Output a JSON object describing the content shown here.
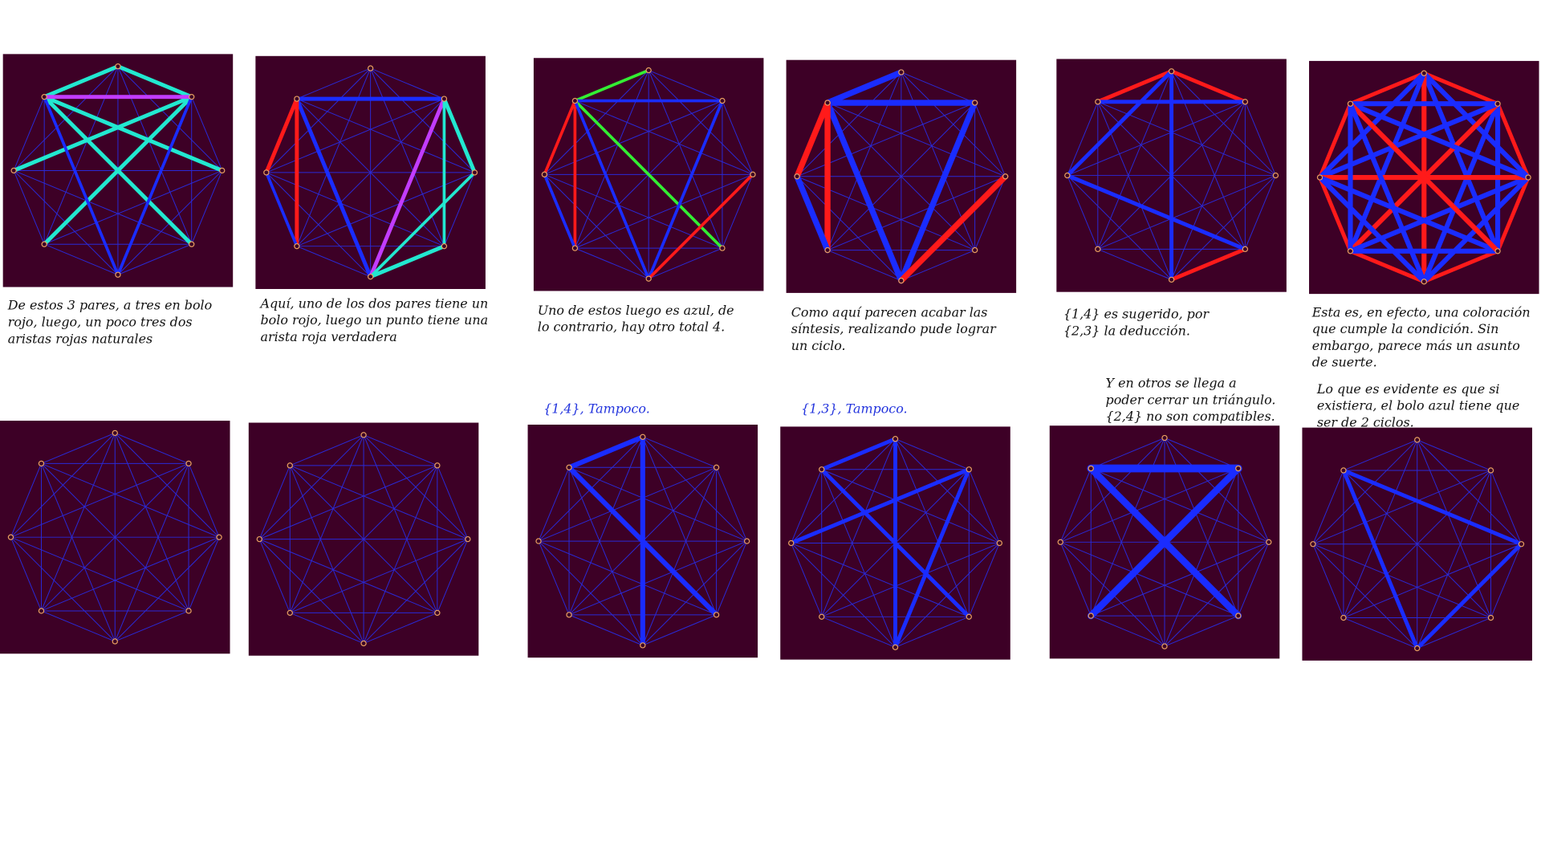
{
  "notes": [
    {
      "lines": [
        "De estos 3 pares, a tres en bolo",
        "rojo, luego, un poco tres dos",
        "aristas rojas naturales"
      ]
    },
    {
      "lines": [
        "Aquí, uno de los dos pares tiene un",
        "bolo rojo, luego un punto tiene una",
        "arista roja verdadera"
      ]
    },
    {
      "lines": [
        "Uno de estos luego es azul, de",
        "lo contrario, hay otro total 4."
      ]
    },
    {
      "lines": [
        "Como aquí parecen acabar las",
        "síntesis, realizando pude lograr",
        "un ciclo."
      ]
    },
    {
      "lines": [
        "{1,4} es sugerido, por",
        "{2,3} la deducción."
      ]
    },
    {
      "lines": [
        "Esta es, en efecto, una coloración",
        "que cumple la condición. Sin",
        "embargo, parece más un asunto",
        "de suerte."
      ]
    },
    {
      "lines": [
        "{1,4}, Tampoco."
      ]
    },
    {
      "lines": [
        "{1,3}, Tampoco."
      ]
    },
    {
      "lines": [
        "Y en otros se llega a",
        "poder cerrar un triángulo.",
        "{2,4} no son compatibles."
      ]
    },
    {
      "lines": [
        "Lo que es evidente es que si",
        "existiera, el bolo azul tiene que",
        "ser de 2 ciclos."
      ]
    }
  ]
}
